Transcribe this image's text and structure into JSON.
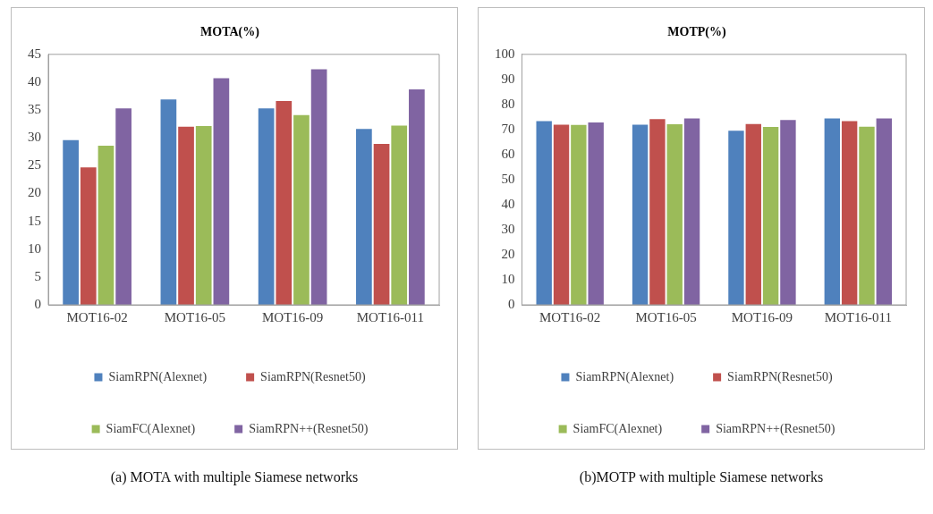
{
  "chart_data": [
    {
      "type": "bar",
      "title": "MOTA(%)",
      "categories": [
        "MOT16-02",
        "MOT16-05",
        "MOT16-09",
        "MOT16-011"
      ],
      "series": [
        {
          "name": "SiamRPN(Alexnet)",
          "color": "#4f81bd",
          "values": [
            29.6,
            36.9,
            35.3,
            31.6
          ]
        },
        {
          "name": "SiamRPN(Resnet50)",
          "color": "#c0504d",
          "values": [
            24.7,
            32.0,
            36.6,
            28.9
          ]
        },
        {
          "name": "SiamFC(Alexnet)",
          "color": "#9bbb59",
          "values": [
            28.6,
            32.1,
            34.1,
            32.2
          ]
        },
        {
          "name": "SiamRPN++(Resnet50)",
          "color": "#8064a2",
          "values": [
            35.3,
            40.7,
            42.3,
            38.7
          ]
        }
      ],
      "ylim": [
        0,
        45
      ],
      "yticks": [
        0,
        5,
        10,
        15,
        20,
        25,
        30,
        35,
        40,
        45
      ],
      "grid": false,
      "legend": "bottom",
      "annotations": [
        "(a) MOTA with multiple Siamese networks"
      ]
    },
    {
      "type": "bar",
      "title": "MOTP(%)",
      "categories": [
        "MOT16-02",
        "MOT16-05",
        "MOT16-09",
        "MOT16-011"
      ],
      "series": [
        {
          "name": "SiamRPN(Alexnet)",
          "color": "#4f81bd",
          "values": [
            73.3,
            71.9,
            69.5,
            74.4
          ]
        },
        {
          "name": "SiamRPN(Resnet50)",
          "color": "#c0504d",
          "values": [
            71.9,
            74.1,
            72.2,
            73.3
          ]
        },
        {
          "name": "SiamFC(Alexnet)",
          "color": "#9bbb59",
          "values": [
            71.8,
            72.1,
            71.0,
            71.1
          ]
        },
        {
          "name": "SiamRPN++(Resnet50)",
          "color": "#8064a2",
          "values": [
            72.8,
            74.4,
            73.8,
            74.4
          ]
        }
      ],
      "ylim": [
        0,
        100
      ],
      "yticks": [
        0,
        10,
        20,
        30,
        40,
        50,
        60,
        70,
        80,
        90,
        100
      ],
      "grid": false,
      "legend": "bottom",
      "annotations": [
        "(b)MOTP with multiple Siamese networks"
      ]
    }
  ]
}
